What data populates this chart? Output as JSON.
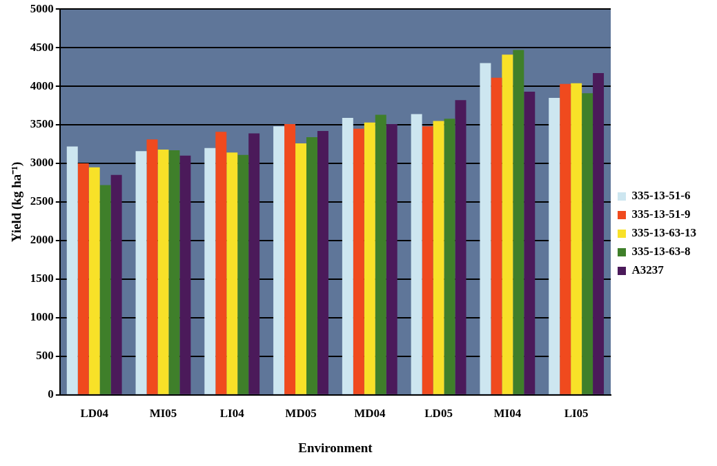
{
  "chart_data": {
    "type": "bar",
    "xlabel": "Environment",
    "ylabel": "Yield (kg ha⁻¹)",
    "categories": [
      "LD04",
      "MI05",
      "LI04",
      "MD05",
      "MD04",
      "LD05",
      "MI04",
      "LI05"
    ],
    "series": [
      {
        "name": "335-13-51-6",
        "color": "#cde6f0",
        "values": [
          3220,
          3160,
          3200,
          3480,
          3590,
          3640,
          4300,
          3850
        ]
      },
      {
        "name": "335-13-51-9",
        "color": "#f04a1e",
        "values": [
          3000,
          3310,
          3410,
          3510,
          3450,
          3480,
          4110,
          4030
        ]
      },
      {
        "name": "335-13-63-13",
        "color": "#f8e128",
        "values": [
          2950,
          3180,
          3140,
          3260,
          3530,
          3550,
          4410,
          4040
        ]
      },
      {
        "name": "335-13-63-8",
        "color": "#3f7f2a",
        "values": [
          2720,
          3170,
          3110,
          3340,
          3630,
          3580,
          4470,
          3910
        ]
      },
      {
        "name": "A3237",
        "color": "#4b1a5a",
        "values": [
          2850,
          3100,
          3390,
          3420,
          3510,
          3820,
          3930,
          4170
        ]
      }
    ],
    "ylim": [
      0,
      5000
    ],
    "yticks": [
      0,
      500,
      1000,
      1500,
      2000,
      2500,
      3000,
      3500,
      4000,
      4500,
      5000
    ],
    "grid": "y",
    "legend": "right"
  }
}
